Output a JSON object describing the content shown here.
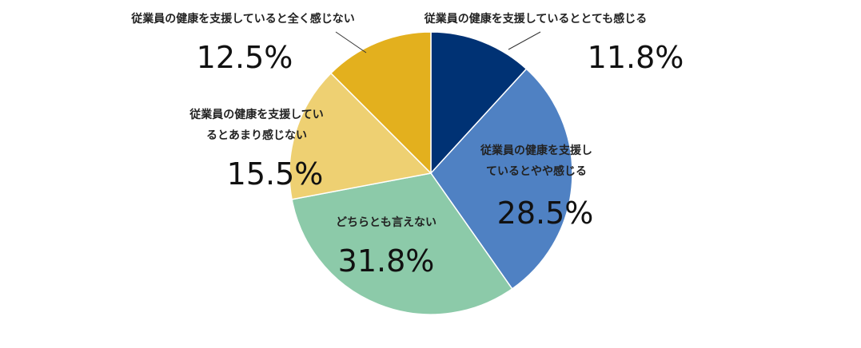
{
  "chart_data": {
    "type": "pie",
    "title": "",
    "start": "top",
    "direction": "clockwise",
    "slices": [
      {
        "label": [
          "従業員の健康を支援しているととても感じる"
        ],
        "value": 11.8,
        "value_label": "11.8%",
        "color": "#003274"
      },
      {
        "label": [
          "従業員の健康を支援し",
          "ているとやや感じる"
        ],
        "value": 28.5,
        "value_label": "28.5%",
        "color": "#4f81c3"
      },
      {
        "label": [
          "どちらとも言えない"
        ],
        "value": 31.8,
        "value_label": "31.8%",
        "color": "#8ccaa9"
      },
      {
        "label": [
          "従業員の健康を支援してい",
          "るとあまり感じない"
        ],
        "value": 15.5,
        "value_label": "15.5%",
        "color": "#eed072"
      },
      {
        "label": [
          "従業員の健康を支援していると全く感じない"
        ],
        "value": 12.5,
        "value_label": "12.5%",
        "color": "#e3b01e"
      }
    ]
  }
}
